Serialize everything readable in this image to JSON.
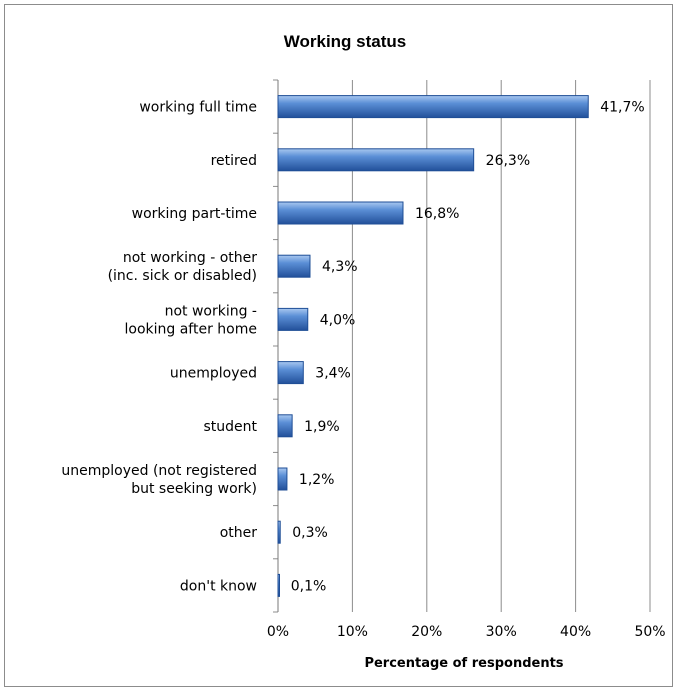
{
  "chart_data": {
    "type": "bar",
    "orientation": "horizontal",
    "title": "Working status",
    "xlabel": "Percentage of respondents",
    "ylabel": "",
    "xlim": [
      0,
      50
    ],
    "x_ticks": [
      "0%",
      "10%",
      "20%",
      "30%",
      "40%",
      "50%"
    ],
    "grid": "vertical",
    "categories": [
      [
        "working full time"
      ],
      [
        "retired"
      ],
      [
        "working part-time"
      ],
      [
        "not working - other",
        "(inc. sick or disabled)"
      ],
      [
        "not working -",
        "looking after home"
      ],
      [
        "unemployed"
      ],
      [
        "student"
      ],
      [
        "unemployed (not registered",
        "but seeking work)"
      ],
      [
        "other"
      ],
      [
        "don't know"
      ]
    ],
    "values": [
      41.7,
      26.3,
      16.8,
      4.3,
      4.0,
      3.4,
      1.9,
      1.2,
      0.3,
      0.1
    ],
    "value_labels": [
      "41,7%",
      "26,3%",
      "16,8%",
      "4,3%",
      "4,0%",
      "3,4%",
      "1,9%",
      "1,2%",
      "0,3%",
      "0,1%"
    ],
    "colors": {
      "bar": "#4a7ec8",
      "bar_dark": "#1f4e96",
      "bar_light": "#9cc0ee",
      "grid": "#8c8c8c"
    }
  }
}
